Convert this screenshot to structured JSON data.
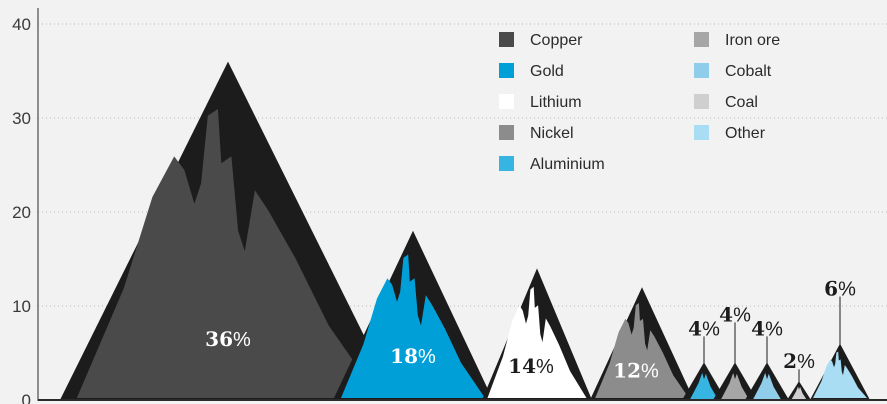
{
  "chart_data": {
    "type": "area",
    "title": "",
    "xlabel": "",
    "ylabel": "",
    "ylim": [
      0,
      40
    ],
    "yticks": [
      0,
      10,
      20,
      30,
      40
    ],
    "grid": true,
    "legend_position": "top-right",
    "legend": [
      {
        "name": "Copper",
        "color": "#4a4a4a"
      },
      {
        "name": "Gold",
        "color": "#009fd8"
      },
      {
        "name": "Lithium",
        "color": "#ffffff"
      },
      {
        "name": "Nickel",
        "color": "#8c8c8c"
      },
      {
        "name": "Aluminium",
        "color": "#36b5e3"
      },
      {
        "name": "Iron ore",
        "color": "#a6a6a6"
      },
      {
        "name": "Cobalt",
        "color": "#8fcdea"
      },
      {
        "name": "Coal",
        "color": "#cfcfcf"
      },
      {
        "name": "Other",
        "color": "#a8ddf4"
      }
    ],
    "series": [
      {
        "name": "Copper",
        "value": 36,
        "label": "36"
      },
      {
        "name": "Gold",
        "value": 18,
        "label": "18"
      },
      {
        "name": "Lithium",
        "value": 14,
        "label": "14"
      },
      {
        "name": "Nickel",
        "value": 12,
        "label": "12"
      },
      {
        "name": "Aluminium",
        "value": 4,
        "label": "4"
      },
      {
        "name": "Iron ore",
        "value": 4,
        "label": "4"
      },
      {
        "name": "Cobalt",
        "value": 4,
        "label": "4"
      },
      {
        "name": "Coal",
        "value": 2,
        "label": "2"
      },
      {
        "name": "Other",
        "value": 6,
        "label": "6"
      }
    ],
    "percent_symbol": "%"
  }
}
